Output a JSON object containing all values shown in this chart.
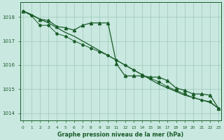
{
  "background_color": "#c8e8e0",
  "plot_bg_color": "#c8e8e0",
  "grid_color": "#a0c8b8",
  "line_color": "#1a5c28",
  "xlabel": "Graphe pression niveau de la mer (hPa)",
  "ylim": [
    1013.7,
    1018.6
  ],
  "xlim": [
    -0.3,
    23.3
  ],
  "yticks": [
    1014,
    1015,
    1016,
    1017,
    1018
  ],
  "xticks": [
    0,
    1,
    2,
    3,
    4,
    5,
    6,
    7,
    8,
    9,
    10,
    11,
    12,
    13,
    14,
    15,
    16,
    17,
    18,
    19,
    20,
    21,
    22,
    23
  ],
  "series_smooth": {
    "x": [
      0,
      1,
      2,
      3,
      4,
      5,
      6,
      7,
      8,
      9,
      10,
      11,
      12,
      13,
      14,
      15,
      16,
      17,
      18,
      19,
      20,
      21,
      22,
      23
    ],
    "y": [
      1018.25,
      1018.1,
      1017.9,
      1017.75,
      1017.55,
      1017.35,
      1017.2,
      1017.0,
      1016.8,
      1016.6,
      1016.4,
      1016.2,
      1016.0,
      1015.8,
      1015.6,
      1015.4,
      1015.2,
      1015.05,
      1014.9,
      1014.75,
      1014.65,
      1014.55,
      1014.45,
      1014.2
    ],
    "linewidth": 0.9,
    "marker": null
  },
  "series_diamond": {
    "x": [
      0,
      1,
      2,
      3,
      4,
      5,
      6,
      7,
      8,
      9,
      10,
      11,
      12,
      13,
      14,
      15,
      16,
      17,
      18,
      19,
      20,
      21,
      22,
      23
    ],
    "y": [
      1018.25,
      1018.05,
      1017.65,
      1017.65,
      1017.3,
      1017.2,
      1017.0,
      1016.85,
      1016.7,
      1016.55,
      1016.4,
      1016.2,
      1016.0,
      1015.8,
      1015.6,
      1015.45,
      1015.3,
      1015.1,
      1014.95,
      1014.8,
      1014.65,
      1014.55,
      1014.48,
      1014.2
    ],
    "linewidth": 0.7,
    "marker": "D",
    "markersize": 2.0
  },
  "series_triangle": {
    "x": [
      0,
      2,
      3,
      4,
      5,
      6,
      7,
      8,
      9,
      10,
      11,
      12,
      13,
      14,
      15,
      16,
      17,
      18,
      19,
      20,
      21,
      22,
      23
    ],
    "y": [
      1018.25,
      1017.9,
      1017.85,
      1017.6,
      1017.55,
      1017.45,
      1017.65,
      1017.75,
      1017.75,
      1017.75,
      1016.05,
      1015.55,
      1015.55,
      1015.55,
      1015.5,
      1015.5,
      1015.35,
      1015.05,
      1014.95,
      1014.8,
      1014.8,
      1014.75,
      1014.2
    ],
    "linewidth": 0.9,
    "marker": "^",
    "markersize": 3.0
  }
}
